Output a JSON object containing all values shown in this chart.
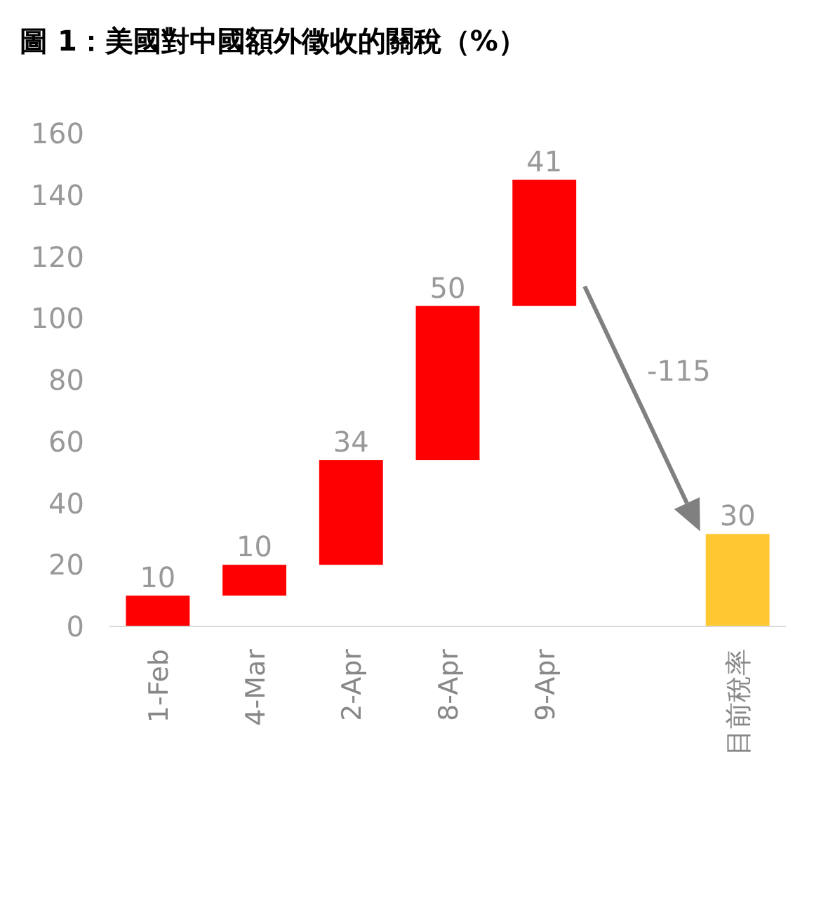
{
  "chart_data": {
    "type": "bar",
    "title": "圖 1：美國對中國額外徵收的關稅（%）",
    "categories": [
      "1-Feb",
      "4-Mar",
      "2-Apr",
      "8-Apr",
      "9-Apr",
      null,
      "目前稅率"
    ],
    "values": [
      10,
      10,
      34,
      50,
      41,
      null,
      30
    ],
    "base": [
      0,
      10,
      20,
      54,
      104,
      null,
      0
    ],
    "colors": [
      "#ff0000",
      "#ff0000",
      "#ff0000",
      "#ff0000",
      "#ff0000",
      null,
      "#ffc832"
    ],
    "data_labels": true,
    "annotations": [
      "-115"
    ],
    "ylim": [
      0,
      160
    ],
    "yticks": [
      0,
      20,
      40,
      60,
      80,
      100,
      120,
      140,
      160
    ],
    "grid": false
  }
}
